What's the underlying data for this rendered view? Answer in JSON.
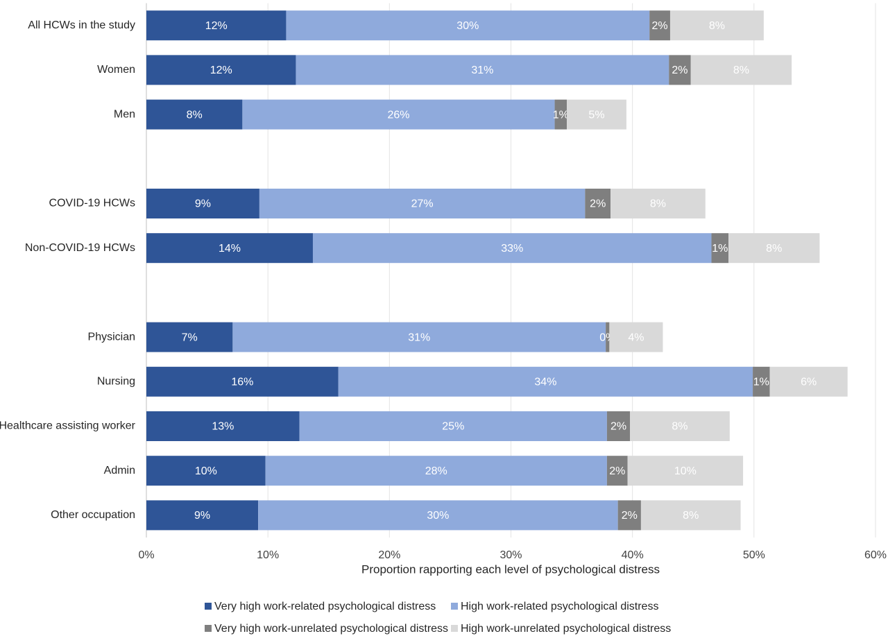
{
  "chart_data": {
    "type": "stacked-bar-horizontal",
    "x_label": "Proportion rapporting each level of psychological distress",
    "categories": [
      "All HCWs in the study",
      "Women",
      "Men",
      null,
      "COVID-19 HCWs",
      "Non-COVID-19 HCWs",
      null,
      "Physician",
      "Nursing",
      "Healthcare assisting worker",
      "Admin",
      "Other occupation"
    ],
    "series": [
      {
        "name": "Very high work-related psychological distress",
        "color": "#2f5597",
        "values": [
          11.5,
          12.3,
          7.9,
          null,
          9.3,
          13.7,
          null,
          7.1,
          15.8,
          12.6,
          9.8,
          9.2
        ],
        "value_labels": [
          "12%",
          "12%",
          "8%",
          null,
          "9%",
          "14%",
          null,
          "7%",
          "16%",
          "13%",
          "10%",
          "9%"
        ]
      },
      {
        "name": "High work-related psychological distress",
        "color": "#8faadc",
        "values": [
          29.9,
          30.7,
          25.7,
          null,
          26.8,
          32.8,
          null,
          30.7,
          34.1,
          25.3,
          28.1,
          29.6
        ],
        "value_labels": [
          "30%",
          "31%",
          "26%",
          null,
          "27%",
          "33%",
          null,
          "31%",
          "34%",
          "25%",
          "28%",
          "30%"
        ]
      },
      {
        "name": "Very high work-unrelated psychological distress",
        "color": "#7f7f7f",
        "values": [
          1.7,
          1.8,
          1.0,
          null,
          2.1,
          1.4,
          null,
          0.3,
          1.4,
          1.9,
          1.7,
          1.9
        ],
        "value_labels": [
          "2%",
          "2%",
          "1%",
          null,
          "2%",
          "1%",
          null,
          "0%",
          "1%",
          "2%",
          "2%",
          "2%"
        ]
      },
      {
        "name": "High work-unrelated psychological distress",
        "color": "#d9d9d9",
        "values": [
          7.7,
          8.3,
          4.9,
          null,
          7.8,
          7.5,
          null,
          4.4,
          6.4,
          8.2,
          9.5,
          8.2
        ],
        "value_labels": [
          "8%",
          "8%",
          "5%",
          null,
          "8%",
          "8%",
          null,
          "4%",
          "6%",
          "8%",
          "10%",
          "8%"
        ]
      }
    ],
    "xlim": [
      0,
      60
    ],
    "xticks": [
      {
        "value": 0,
        "label": "0%"
      },
      {
        "value": 10,
        "label": "10%"
      },
      {
        "value": 20,
        "label": "20%"
      },
      {
        "value": 30,
        "label": "30%"
      },
      {
        "value": 40,
        "label": "40%"
      },
      {
        "value": 50,
        "label": "50%"
      },
      {
        "value": 60,
        "label": "60%"
      }
    ],
    "grid": true
  }
}
